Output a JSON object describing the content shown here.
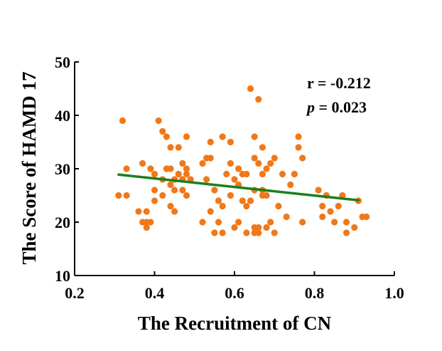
{
  "chart_data": {
    "type": "scatter",
    "title": "",
    "xlabel": "The Recruitment of CN",
    "ylabel": "The Score of HAMD 17",
    "xlim": [
      0.2,
      1.0
    ],
    "ylim": [
      10,
      50
    ],
    "xticks": [
      "0.2",
      "0.4",
      "0.6",
      "0.8",
      "1.0"
    ],
    "yticks": [
      "10",
      "20",
      "30",
      "40",
      "50"
    ],
    "grid": false,
    "annotations": {
      "r_text": "r = -0.212",
      "p_symbol": "p",
      "p_rest": " = 0.023"
    },
    "colors": {
      "points": "#f07818",
      "trend": "#1b7f1b"
    },
    "trendline": {
      "x": [
        0.31,
        0.91
      ],
      "y": [
        28.9,
        24.1
      ]
    },
    "points": [
      [
        0.31,
        25
      ],
      [
        0.32,
        39
      ],
      [
        0.33,
        30
      ],
      [
        0.33,
        25
      ],
      [
        0.36,
        22
      ],
      [
        0.37,
        20
      ],
      [
        0.37,
        31
      ],
      [
        0.38,
        19
      ],
      [
        0.38,
        20
      ],
      [
        0.38,
        22
      ],
      [
        0.39,
        30
      ],
      [
        0.39,
        20
      ],
      [
        0.4,
        29
      ],
      [
        0.4,
        26
      ],
      [
        0.4,
        24
      ],
      [
        0.41,
        39
      ],
      [
        0.42,
        28
      ],
      [
        0.42,
        25
      ],
      [
        0.42,
        37
      ],
      [
        0.43,
        36
      ],
      [
        0.43,
        30
      ],
      [
        0.44,
        34
      ],
      [
        0.44,
        30
      ],
      [
        0.44,
        27
      ],
      [
        0.44,
        23
      ],
      [
        0.45,
        28
      ],
      [
        0.45,
        26
      ],
      [
        0.45,
        22
      ],
      [
        0.46,
        34
      ],
      [
        0.46,
        29
      ],
      [
        0.47,
        31
      ],
      [
        0.47,
        26
      ],
      [
        0.47,
        28
      ],
      [
        0.48,
        36
      ],
      [
        0.48,
        30
      ],
      [
        0.48,
        29
      ],
      [
        0.48,
        25
      ],
      [
        0.49,
        28
      ],
      [
        0.52,
        31
      ],
      [
        0.52,
        20
      ],
      [
        0.53,
        32
      ],
      [
        0.53,
        28
      ],
      [
        0.54,
        35
      ],
      [
        0.54,
        32
      ],
      [
        0.54,
        22
      ],
      [
        0.55,
        18
      ],
      [
        0.55,
        26
      ],
      [
        0.56,
        24
      ],
      [
        0.56,
        20
      ],
      [
        0.57,
        36
      ],
      [
        0.57,
        23
      ],
      [
        0.57,
        18
      ],
      [
        0.58,
        29
      ],
      [
        0.59,
        35
      ],
      [
        0.59,
        31
      ],
      [
        0.59,
        25
      ],
      [
        0.6,
        28
      ],
      [
        0.6,
        19
      ],
      [
        0.61,
        30
      ],
      [
        0.61,
        27
      ],
      [
        0.61,
        20
      ],
      [
        0.62,
        24
      ],
      [
        0.62,
        29
      ],
      [
        0.63,
        29
      ],
      [
        0.63,
        23
      ],
      [
        0.63,
        18
      ],
      [
        0.64,
        45
      ],
      [
        0.64,
        24
      ],
      [
        0.65,
        36
      ],
      [
        0.65,
        32
      ],
      [
        0.65,
        26
      ],
      [
        0.65,
        19
      ],
      [
        0.65,
        18
      ],
      [
        0.66,
        43
      ],
      [
        0.66,
        31
      ],
      [
        0.66,
        18
      ],
      [
        0.66,
        19
      ],
      [
        0.67,
        34
      ],
      [
        0.67,
        29
      ],
      [
        0.67,
        26
      ],
      [
        0.67,
        25
      ],
      [
        0.68,
        30
      ],
      [
        0.68,
        25
      ],
      [
        0.68,
        19
      ],
      [
        0.69,
        31
      ],
      [
        0.69,
        20
      ],
      [
        0.7,
        32
      ],
      [
        0.7,
        18
      ],
      [
        0.71,
        23
      ],
      [
        0.72,
        29
      ],
      [
        0.73,
        21
      ],
      [
        0.74,
        27
      ],
      [
        0.75,
        29
      ],
      [
        0.76,
        36
      ],
      [
        0.76,
        34
      ],
      [
        0.77,
        32
      ],
      [
        0.77,
        20
      ],
      [
        0.81,
        26
      ],
      [
        0.82,
        23
      ],
      [
        0.82,
        21
      ],
      [
        0.83,
        25
      ],
      [
        0.84,
        22
      ],
      [
        0.85,
        20
      ],
      [
        0.86,
        23
      ],
      [
        0.87,
        25
      ],
      [
        0.88,
        18
      ],
      [
        0.88,
        20
      ],
      [
        0.9,
        19
      ],
      [
        0.91,
        24
      ],
      [
        0.92,
        21
      ],
      [
        0.93,
        21
      ]
    ]
  }
}
